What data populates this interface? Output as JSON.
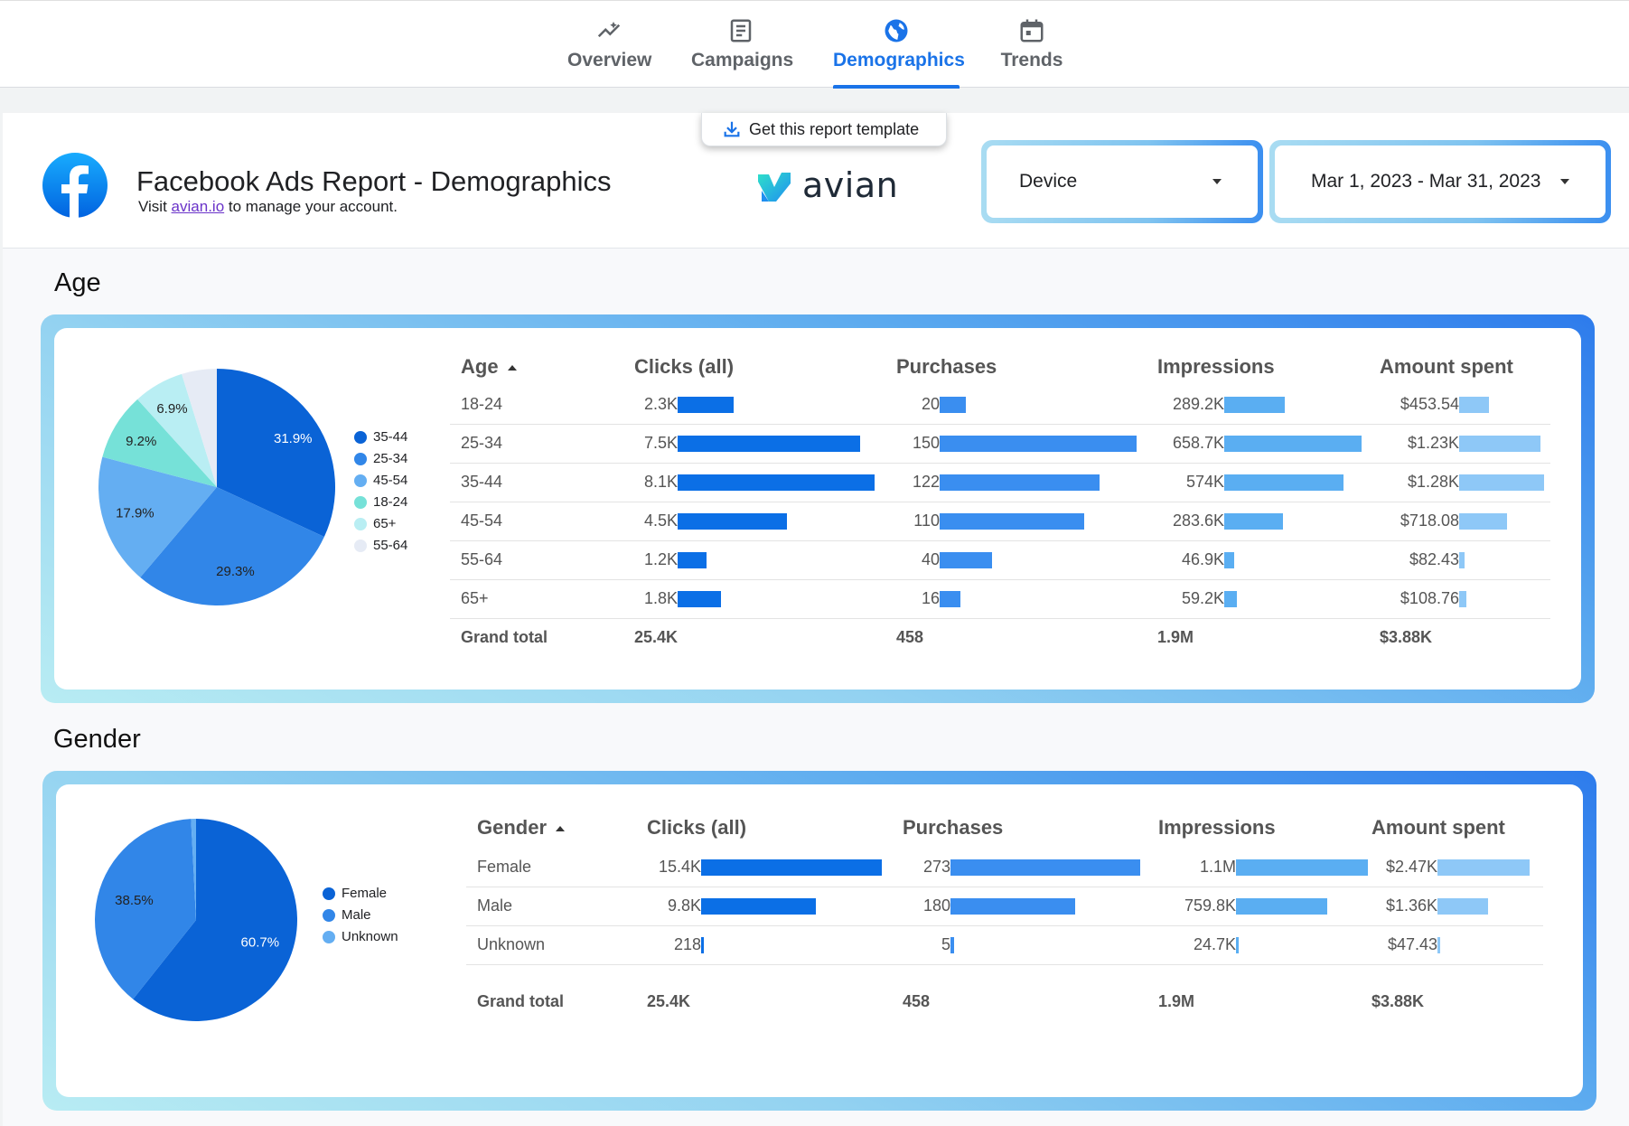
{
  "nav": {
    "tabs": [
      {
        "label": "Overview",
        "icon": "trending-icon",
        "active": false
      },
      {
        "label": "Campaigns",
        "icon": "document-icon",
        "active": false
      },
      {
        "label": "Demographics",
        "icon": "globe-icon",
        "active": true
      },
      {
        "label": "Trends",
        "icon": "calendar-icon",
        "active": false
      }
    ]
  },
  "header": {
    "title": "Facebook Ads Report - Demographics",
    "subtitle_prefix": "Visit ",
    "subtitle_link": "avian.io",
    "subtitle_suffix": " to manage your account.",
    "template_button": "Get this report template",
    "brand": "avian",
    "device_filter": "Device",
    "date_filter": "Mar 1, 2023 - Mar 31, 2023"
  },
  "colors": {
    "accent": "#1a73e8",
    "bar_clicks": "#0b6fe6",
    "bar_purchases": "#3a8ef0",
    "bar_impressions": "#5aaef2",
    "bar_amount": "#8ec8f7"
  },
  "age": {
    "section_title": "Age",
    "headers": {
      "dimension": "Age",
      "clicks": "Clicks (all)",
      "purchases": "Purchases",
      "impressions": "Impressions",
      "amount": "Amount spent"
    },
    "rows": [
      {
        "label": "18-24",
        "clicks": "2.3K",
        "clicks_v": 2300,
        "purchases": "20",
        "purchases_v": 20,
        "impressions": "289.2K",
        "impressions_v": 289200,
        "amount": "$453.54",
        "amount_v": 453.54
      },
      {
        "label": "25-34",
        "clicks": "7.5K",
        "clicks_v": 7500,
        "purchases": "150",
        "purchases_v": 150,
        "impressions": "658.7K",
        "impressions_v": 658700,
        "amount": "$1.23K",
        "amount_v": 1230
      },
      {
        "label": "35-44",
        "clicks": "8.1K",
        "clicks_v": 8100,
        "purchases": "122",
        "purchases_v": 122,
        "impressions": "574K",
        "impressions_v": 574000,
        "amount": "$1.28K",
        "amount_v": 1280
      },
      {
        "label": "45-54",
        "clicks": "4.5K",
        "clicks_v": 4500,
        "purchases": "110",
        "purchases_v": 110,
        "impressions": "283.6K",
        "impressions_v": 283600,
        "amount": "$718.08",
        "amount_v": 718.08
      },
      {
        "label": "55-64",
        "clicks": "1.2K",
        "clicks_v": 1200,
        "purchases": "40",
        "purchases_v": 40,
        "impressions": "46.9K",
        "impressions_v": 46900,
        "amount": "$82.43",
        "amount_v": 82.43
      },
      {
        "label": "65+",
        "clicks": "1.8K",
        "clicks_v": 1800,
        "purchases": "16",
        "purchases_v": 16,
        "impressions": "59.2K",
        "impressions_v": 59200,
        "amount": "$108.76",
        "amount_v": 108.76
      }
    ],
    "total": {
      "label": "Grand total",
      "clicks": "25.4K",
      "purchases": "458",
      "impressions": "1.9M",
      "amount": "$3.88K"
    }
  },
  "gender": {
    "section_title": "Gender",
    "headers": {
      "dimension": "Gender",
      "clicks": "Clicks (all)",
      "purchases": "Purchases",
      "impressions": "Impressions",
      "amount": "Amount spent"
    },
    "rows": [
      {
        "label": "Female",
        "clicks": "15.4K",
        "clicks_v": 15400,
        "purchases": "273",
        "purchases_v": 273,
        "impressions": "1.1M",
        "impressions_v": 1100000,
        "amount": "$2.47K",
        "amount_v": 2470
      },
      {
        "label": "Male",
        "clicks": "9.8K",
        "clicks_v": 9800,
        "purchases": "180",
        "purchases_v": 180,
        "impressions": "759.8K",
        "impressions_v": 759800,
        "amount": "$1.36K",
        "amount_v": 1360
      },
      {
        "label": "Unknown",
        "clicks": "218",
        "clicks_v": 218,
        "purchases": "5",
        "purchases_v": 5,
        "impressions": "24.7K",
        "impressions_v": 24700,
        "amount": "$47.43",
        "amount_v": 47.43
      }
    ],
    "total": {
      "label": "Grand total",
      "clicks": "25.4K",
      "purchases": "458",
      "impressions": "1.9M",
      "amount": "$3.88K"
    }
  },
  "chart_data": [
    {
      "type": "pie",
      "categories": [
        "35-44",
        "25-34",
        "45-54",
        "18-24",
        "65+",
        "55-64"
      ],
      "values": [
        31.9,
        29.3,
        17.9,
        9.2,
        6.9,
        4.8
      ],
      "labels": [
        "31.9%",
        "29.3%",
        "17.9%",
        "9.2%",
        "6.9%",
        ""
      ],
      "colors": [
        "#0a63d6",
        "#3186e8",
        "#64aef2",
        "#76e1d8",
        "#b9eef3",
        "#e6ebf5"
      ],
      "legend": "right"
    },
    {
      "type": "pie",
      "categories": [
        "Female",
        "Male",
        "Unknown"
      ],
      "values": [
        60.7,
        38.5,
        0.8
      ],
      "labels": [
        "60.7%",
        "38.5%",
        ""
      ],
      "colors": [
        "#0a63d6",
        "#3186e8",
        "#64aef2"
      ],
      "legend": "right"
    }
  ]
}
